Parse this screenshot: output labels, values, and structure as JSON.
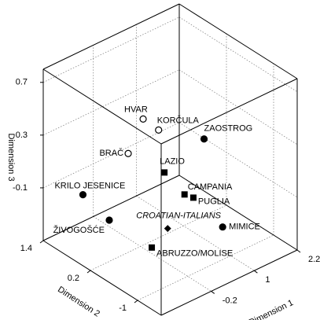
{
  "chart_data": {
    "type": "scatter3d",
    "xlabel": "Dimension 1",
    "ylabel": "Dimension 2",
    "zlabel": "Dimension 3",
    "xlim": [
      -1.6,
      2.2
    ],
    "ylim": [
      -1.6,
      1.4
    ],
    "zlim": [
      -0.5,
      0.8
    ],
    "xticks": [
      -0.2,
      1.0,
      2.2
    ],
    "yticks": [
      1.4,
      0.2,
      -1.0
    ],
    "zticks": [
      0.7,
      0.3,
      -0.1
    ],
    "grid": true,
    "color": "#000000",
    "labels": [
      "HVAR",
      "KORČULA",
      "BRAČ",
      "ZAOSTROG",
      "LAZIO",
      "CAMPANIA",
      "PUGLIA",
      "KRILO JESENICE",
      "ŽIVOGOŠĆE",
      "CROATIAN-ITALIANS",
      "MIMICE",
      "ABRUZZO/MOLISE"
    ],
    "markers": [
      "circle-open",
      "circle-open",
      "circle-open",
      "circle",
      "square",
      "square",
      "square",
      "circle",
      "circle",
      "diamond",
      "circle",
      "square"
    ],
    "x": [
      -0.27,
      0.03,
      -0.38,
      1.19,
      0.05,
      0.48,
      0.54,
      -0.81,
      -0.7,
      0.02,
      0.6,
      -0.38
    ],
    "y": [
      0.07,
      -0.05,
      0.35,
      -0.15,
      -0.18,
      -0.3,
      -0.47,
      1.11,
      0.54,
      -0.29,
      -1.16,
      -0.25
    ],
    "z": [
      0.5,
      0.4,
      0.2,
      0.2,
      0.1,
      -0.1,
      -0.1,
      -0.2,
      -0.3,
      -0.3,
      -0.2,
      -0.4
    ]
  }
}
